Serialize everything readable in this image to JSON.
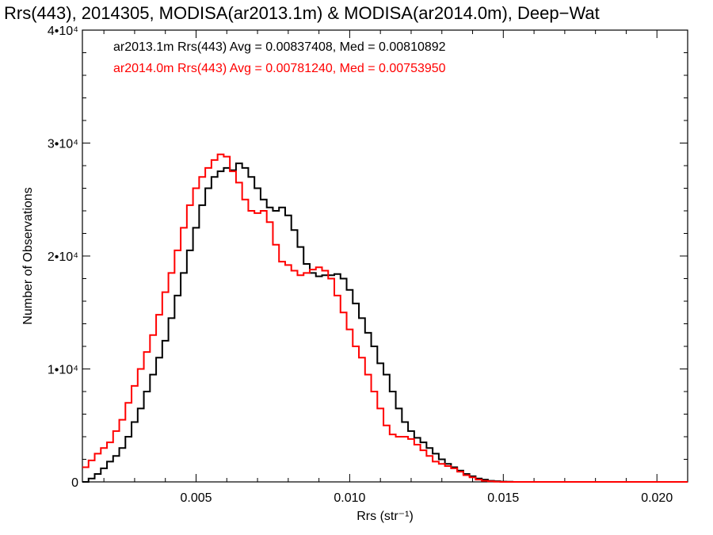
{
  "chart_data": {
    "type": "line",
    "step": true,
    "title": "Rrs(443), 2014305, MODISA(ar2013.1m) & MODISA(ar2014.0m), Deep−Wat",
    "xlabel": "Rrs (str⁻¹)",
    "ylabel": "Number of Observations",
    "xlim": [
      0.0013,
      0.021
    ],
    "ylim": [
      0,
      40000
    ],
    "xticks": [
      {
        "value": 0.005,
        "label": "0.005"
      },
      {
        "value": 0.01,
        "label": "0.010"
      },
      {
        "value": 0.015,
        "label": "0.015"
      },
      {
        "value": 0.02,
        "label": "0.020"
      }
    ],
    "yticks": [
      {
        "value": 0,
        "label": "0"
      },
      {
        "value": 10000,
        "label": "1•10⁴"
      },
      {
        "value": 20000,
        "label": "2•10⁴"
      },
      {
        "value": 30000,
        "label": "3•10⁴"
      },
      {
        "value": 40000,
        "label": "4•10⁴"
      }
    ],
    "grid": false,
    "legend": "top-left",
    "series": [
      {
        "name": "ar2013.1m",
        "label": "ar2013.1m Rrs(443) Avg = 0.00837408, Med = 0.00810892",
        "color": "#000000",
        "x": [
          0.0013,
          0.0015,
          0.0017,
          0.0019,
          0.0021,
          0.0023,
          0.0025,
          0.0027,
          0.0029,
          0.0031,
          0.0033,
          0.0035,
          0.0037,
          0.0039,
          0.0041,
          0.0043,
          0.0045,
          0.0047,
          0.0049,
          0.0051,
          0.0053,
          0.0055,
          0.0057,
          0.0059,
          0.0061,
          0.0063,
          0.0065,
          0.0067,
          0.0069,
          0.0071,
          0.0073,
          0.0075,
          0.0077,
          0.0079,
          0.0081,
          0.0083,
          0.0085,
          0.0087,
          0.0089,
          0.0091,
          0.0093,
          0.0095,
          0.0097,
          0.0099,
          0.0101,
          0.0103,
          0.0105,
          0.0107,
          0.0109,
          0.0111,
          0.0113,
          0.0115,
          0.0117,
          0.0119,
          0.0121,
          0.0123,
          0.0125,
          0.0127,
          0.0129,
          0.0131,
          0.0133,
          0.0135,
          0.0137,
          0.0139,
          0.0141,
          0.0143,
          0.0145,
          0.0147,
          0.0149,
          0.0151,
          0.0153,
          0.0155,
          0.0157,
          0.0159,
          0.0161,
          0.0163,
          0.0165,
          0.0167,
          0.0169,
          0.0171,
          0.0173,
          0.0175,
          0.0177,
          0.0179,
          0.0181,
          0.0183,
          0.0185,
          0.0187,
          0.0189,
          0.0191,
          0.0193,
          0.0195,
          0.0197,
          0.0199,
          0.0201,
          0.0203,
          0.0205,
          0.0207,
          0.0209
        ],
        "values": [
          0,
          300,
          700,
          1200,
          1800,
          2300,
          3000,
          4000,
          5300,
          6500,
          8000,
          9500,
          11000,
          12500,
          14500,
          16500,
          18500,
          20500,
          22500,
          24500,
          26000,
          27000,
          27500,
          27800,
          27600,
          28200,
          27800,
          27000,
          26000,
          25000,
          24300,
          24000,
          24300,
          23600,
          22300,
          20800,
          19300,
          18500,
          18200,
          18300,
          18300,
          18400,
          18000,
          17000,
          15800,
          14500,
          13200,
          12000,
          10500,
          9500,
          8000,
          6500,
          5300,
          4500,
          3900,
          3500,
          3000,
          2500,
          2000,
          1600,
          1300,
          1000,
          700,
          500,
          300,
          200,
          100,
          60,
          30,
          15,
          0,
          0,
          0,
          0,
          0,
          0,
          0,
          0,
          0,
          0,
          0,
          0,
          0,
          0,
          0,
          0,
          0,
          0,
          0,
          0,
          0,
          0,
          0,
          0,
          0,
          0,
          0,
          0,
          0
        ]
      },
      {
        "name": "ar2014.0m",
        "label": "ar2014.0m Rrs(443) Avg = 0.00781240, Med = 0.00753950",
        "color": "#ff0000",
        "x": [
          0.0013,
          0.0015,
          0.0017,
          0.0019,
          0.0021,
          0.0023,
          0.0025,
          0.0027,
          0.0029,
          0.0031,
          0.0033,
          0.0035,
          0.0037,
          0.0039,
          0.0041,
          0.0043,
          0.0045,
          0.0047,
          0.0049,
          0.0051,
          0.0053,
          0.0055,
          0.0057,
          0.0059,
          0.0061,
          0.0063,
          0.0065,
          0.0067,
          0.0069,
          0.0071,
          0.0073,
          0.0075,
          0.0077,
          0.0079,
          0.0081,
          0.0083,
          0.0085,
          0.0087,
          0.0089,
          0.0091,
          0.0093,
          0.0095,
          0.0097,
          0.0099,
          0.0101,
          0.0103,
          0.0105,
          0.0107,
          0.0109,
          0.0111,
          0.0113,
          0.0115,
          0.0117,
          0.0119,
          0.0121,
          0.0123,
          0.0125,
          0.0127,
          0.0129,
          0.0131,
          0.0133,
          0.0135,
          0.0137,
          0.0139,
          0.0141,
          0.0143,
          0.0145,
          0.0147,
          0.0149,
          0.0151,
          0.0153,
          0.0155,
          0.0157,
          0.0159,
          0.0161,
          0.0163,
          0.0165,
          0.0167,
          0.0169,
          0.0171,
          0.0173,
          0.0175,
          0.0177,
          0.0179,
          0.0181,
          0.0183,
          0.0185,
          0.0187,
          0.0189,
          0.0191,
          0.0193,
          0.0195,
          0.0197,
          0.0199,
          0.0201,
          0.0203,
          0.0205,
          0.0207,
          0.0209
        ],
        "values": [
          1300,
          1900,
          2500,
          3000,
          3500,
          4500,
          5500,
          7000,
          8500,
          10000,
          11500,
          13000,
          14800,
          16800,
          18500,
          20500,
          22500,
          24500,
          26000,
          27000,
          27800,
          28500,
          29000,
          28800,
          27500,
          26500,
          25000,
          24000,
          23800,
          24000,
          23000,
          21000,
          19500,
          19200,
          18700,
          18300,
          18500,
          18800,
          19000,
          18700,
          18000,
          16500,
          15000,
          13500,
          12000,
          11000,
          9500,
          8000,
          6500,
          5000,
          4200,
          4000,
          4000,
          3800,
          3300,
          2800,
          2300,
          1800,
          1600,
          1400,
          1200,
          900,
          600,
          400,
          200,
          100,
          50,
          20,
          0,
          0,
          0,
          0,
          0,
          0,
          0,
          0,
          0,
          0,
          0,
          0,
          0,
          0,
          0,
          0,
          0,
          0,
          0,
          0,
          0,
          0,
          0,
          0,
          0,
          0,
          0,
          0,
          0,
          0,
          0
        ]
      }
    ]
  }
}
